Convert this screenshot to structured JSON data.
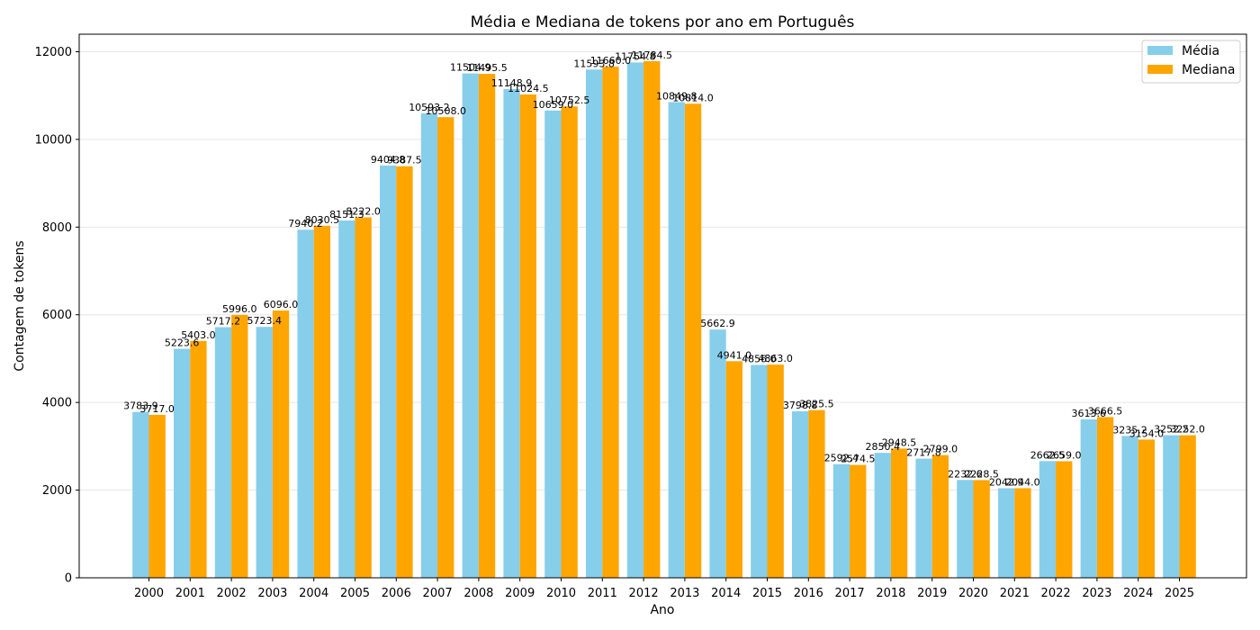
{
  "chart_data": {
    "type": "bar",
    "title": "Média e Mediana de tokens por ano em Português",
    "xlabel": "Ano",
    "ylabel": "Contagem de tokens",
    "ylim": [
      0,
      12400
    ],
    "yticks": [
      0,
      2000,
      4000,
      6000,
      8000,
      10000,
      12000
    ],
    "grid": "horizontal",
    "legend_position": "top-right",
    "categories": [
      "2000",
      "2001",
      "2002",
      "2003",
      "2004",
      "2005",
      "2006",
      "2007",
      "2008",
      "2009",
      "2010",
      "2011",
      "2012",
      "2013",
      "2014",
      "2015",
      "2016",
      "2017",
      "2018",
      "2019",
      "2020",
      "2021",
      "2022",
      "2023",
      "2024",
      "2025"
    ],
    "series": [
      {
        "name": "Média",
        "color": "#87ceeb",
        "values": [
          3783.9,
          5223.6,
          5717.2,
          5723.4,
          7940.2,
          8151.3,
          9404.8,
          10593.2,
          11504.9,
          11148.9,
          10659.0,
          11593.8,
          11754.8,
          10849.8,
          5662.9,
          4856.0,
          3798.8,
          2592.4,
          2850.4,
          2717.8,
          2232.6,
          2042.9,
          2662.5,
          3613.6,
          3235.2,
          3252.2
        ],
        "labels": [
          "3783.9",
          "5223.6",
          "5717.2",
          "5723.4",
          "7940.2",
          "8151.3",
          "9404.8",
          "10593.2",
          "11504.9",
          "11148.9",
          "10659.0",
          "11593.8",
          "11754.8",
          "10849.8",
          "5662.9",
          "4856.0",
          "3798.8",
          "2592.4",
          "2850.4",
          "2717.8",
          "2232.6",
          "2042.9",
          "2662.5",
          "3613.6",
          "3235.2",
          "3252.2"
        ]
      },
      {
        "name": "Mediana",
        "color": "#ffa500",
        "values": [
          3717.0,
          5403.0,
          5996.0,
          6096.0,
          8030.5,
          8222.0,
          9387.5,
          10508.0,
          11495.5,
          11024.5,
          10752.5,
          11660.0,
          11784.5,
          10814.0,
          4941.0,
          4863.0,
          3825.5,
          2574.5,
          2948.5,
          2799.0,
          2228.5,
          2044.0,
          2659.0,
          3666.5,
          3154.0,
          3252.0
        ],
        "labels": [
          "3717.0",
          "5403.0",
          "5996.0",
          "6096.0",
          "8030.5",
          "8222.0",
          "9387.5",
          "10508.0",
          "11495.5",
          "11024.5",
          "10752.5",
          "11660.0",
          "11784.5",
          "10814.0",
          "4941.0",
          "4863.0",
          "3825.5",
          "2574.5",
          "2948.5",
          "2799.0",
          "2228.5",
          "2044.0",
          "2659.0",
          "3666.5",
          "3154.0",
          "3252.0"
        ]
      }
    ]
  }
}
